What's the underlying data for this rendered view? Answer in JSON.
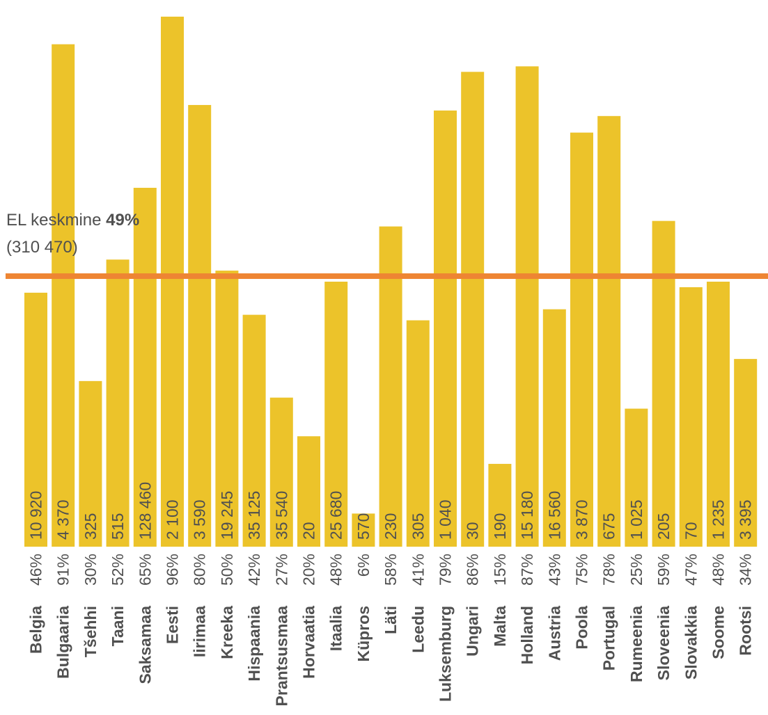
{
  "chart_data": {
    "type": "bar",
    "categories": [
      "Belgia",
      "Bulgaaria",
      "Tšehhi",
      "Taani",
      "Saksamaa",
      "Eesti",
      "Iirimaa",
      "Kreeka",
      "Hispaania",
      "Prantsusmaa",
      "Horvaatia",
      "Itaalia",
      "Küpros",
      "Läti",
      "Leedu",
      "Luksemburg",
      "Ungari",
      "Malta",
      "Holland",
      "Austria",
      "Poola",
      "Portugal",
      "Rumeenia",
      "Sloveenia",
      "Slovakkia",
      "Soome",
      "Rootsi"
    ],
    "values": [
      46,
      91,
      30,
      52,
      65,
      96,
      80,
      50,
      42,
      27,
      20,
      48,
      6,
      58,
      41,
      79,
      86,
      15,
      87,
      43,
      75,
      78,
      25,
      59,
      47,
      48,
      34
    ],
    "percent_labels": [
      "46%",
      "91%",
      "30%",
      "52%",
      "65%",
      "96%",
      "80%",
      "50%",
      "42%",
      "27%",
      "20%",
      "48%",
      "6%",
      "58%",
      "41%",
      "79%",
      "86%",
      "15%",
      "87%",
      "43%",
      "75%",
      "78%",
      "25%",
      "59%",
      "47%",
      "48%",
      "34%"
    ],
    "count_labels": [
      "10 920",
      "4 370",
      "325",
      "515",
      "128 460",
      "2 100",
      "3 590",
      "19 245",
      "35 125",
      "35 540",
      "20",
      "25 680",
      "570",
      "230",
      "305",
      "1 040",
      "30",
      "190",
      "15 180",
      "16 560",
      "3 870",
      "675",
      "1 025",
      "205",
      "70",
      "1 235",
      "3 395"
    ],
    "ylim": [
      0,
      97
    ],
    "reference_line": {
      "value": 49,
      "label_prefix": "EL keskmine",
      "label_value": "49%",
      "sublabel": "(310 470)"
    },
    "title": "",
    "xlabel": "",
    "ylabel": "",
    "grid": false,
    "legend": "none"
  },
  "colors": {
    "bar": "#ecc32a",
    "reference_line": "#ee8533",
    "text": "#505050",
    "bar_text": "#505050",
    "background": "#ffffff"
  }
}
